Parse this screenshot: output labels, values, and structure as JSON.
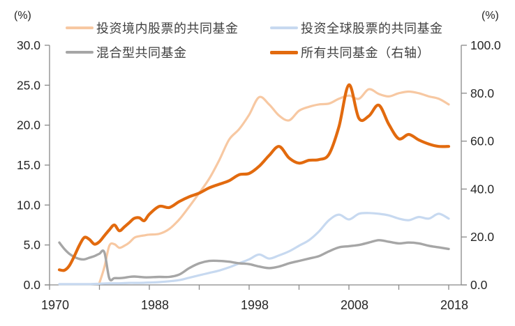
{
  "chart_data": {
    "type": "line",
    "title": "",
    "grid": false,
    "background_color": "#ffffff",
    "legend_position": "top",
    "axis_line_color": "#898989",
    "tick_label_color": "#262626",
    "legend_text_color": "#404040",
    "left_axis": {
      "unit": "(%)",
      "range": [
        0,
        30
      ],
      "tick_values": [
        0,
        5,
        10,
        15,
        20,
        25,
        30
      ],
      "tick_labels": [
        "0.0",
        "5.0",
        "10.0",
        "15.0",
        "20.0",
        "25.0",
        "30.0"
      ]
    },
    "right_axis": {
      "unit": "(%)",
      "range": [
        0,
        100
      ],
      "tick_values": [
        0,
        20,
        40,
        60,
        80,
        100
      ],
      "tick_labels": [
        "0.0",
        "20.0",
        "40.0",
        "60.0",
        "80.0",
        "100.0"
      ]
    },
    "x_axis": {
      "tick_count": 9,
      "tick_labels": [
        "1970",
        "1988",
        "1998",
        "2008",
        "2018"
      ],
      "labeled_tick_indices": [
        0,
        2,
        4,
        6,
        8
      ],
      "start_year": 1970,
      "break_year": 1988,
      "end_year": 2018
    },
    "series": [
      {
        "id": "domestic-equity-funds",
        "name": "投资境内股票的共同基金",
        "axis": "left",
        "color": "#F7C8A2",
        "width": 3.2,
        "points": [
          [
            1978,
            0.2
          ],
          [
            1979,
            2.2
          ],
          [
            1980,
            4.9
          ],
          [
            1981,
            5.1
          ],
          [
            1982,
            4.65
          ],
          [
            1983,
            4.9
          ],
          [
            1984,
            5.3
          ],
          [
            1985,
            5.9
          ],
          [
            1986,
            6.1
          ],
          [
            1987,
            6.2
          ],
          [
            1988,
            6.3
          ],
          [
            1989,
            6.4
          ],
          [
            1990,
            7.0
          ],
          [
            1991,
            8.2
          ],
          [
            1992,
            9.8
          ],
          [
            1993,
            11.5
          ],
          [
            1994,
            13.3
          ],
          [
            1995,
            15.6
          ],
          [
            1996,
            18.2
          ],
          [
            1997,
            19.5
          ],
          [
            1998,
            21.3
          ],
          [
            1999,
            23.5
          ],
          [
            2000,
            22.6
          ],
          [
            2001,
            21.2
          ],
          [
            2002,
            20.6
          ],
          [
            2003,
            21.8
          ],
          [
            2004,
            22.3
          ],
          [
            2005,
            22.6
          ],
          [
            2006,
            22.7
          ],
          [
            2007,
            23.3
          ],
          [
            2008,
            23.7
          ],
          [
            2009,
            23.3
          ],
          [
            2010,
            24.5
          ],
          [
            2011,
            23.9
          ],
          [
            2012,
            23.6
          ],
          [
            2013,
            24.0
          ],
          [
            2014,
            24.2
          ],
          [
            2015,
            24.0
          ],
          [
            2016,
            23.6
          ],
          [
            2017,
            23.3
          ],
          [
            2018,
            22.6
          ]
        ]
      },
      {
        "id": "global-equity-funds",
        "name": "投资全球股票的共同基金",
        "axis": "left",
        "color": "#C7D9F0",
        "width": 3.2,
        "points": [
          [
            1970,
            0.1
          ],
          [
            1972,
            0.1
          ],
          [
            1974,
            0.1
          ],
          [
            1976,
            0.1
          ],
          [
            1978,
            0.15
          ],
          [
            1980,
            0.2
          ],
          [
            1982,
            0.2
          ],
          [
            1984,
            0.25
          ],
          [
            1986,
            0.25
          ],
          [
            1988,
            0.3
          ],
          [
            1989,
            0.35
          ],
          [
            1990,
            0.45
          ],
          [
            1991,
            0.6
          ],
          [
            1992,
            0.9
          ],
          [
            1993,
            1.2
          ],
          [
            1994,
            1.5
          ],
          [
            1995,
            1.8
          ],
          [
            1996,
            2.2
          ],
          [
            1997,
            2.7
          ],
          [
            1998,
            3.2
          ],
          [
            1999,
            3.8
          ],
          [
            2000,
            3.3
          ],
          [
            2001,
            3.7
          ],
          [
            2002,
            4.2
          ],
          [
            2003,
            4.9
          ],
          [
            2004,
            5.6
          ],
          [
            2005,
            6.7
          ],
          [
            2006,
            8.1
          ],
          [
            2007,
            8.8
          ],
          [
            2008,
            8.2
          ],
          [
            2009,
            8.9
          ],
          [
            2010,
            9.0
          ],
          [
            2011,
            8.9
          ],
          [
            2012,
            8.7
          ],
          [
            2013,
            8.3
          ],
          [
            2014,
            8.1
          ],
          [
            2015,
            8.5
          ],
          [
            2016,
            8.3
          ],
          [
            2017,
            8.9
          ],
          [
            2018,
            8.3
          ]
        ]
      },
      {
        "id": "hybrid-funds",
        "name": "混合型共同基金",
        "axis": "left",
        "color": "#A6A6A6",
        "width": 3.4,
        "points": [
          [
            1970,
            5.3
          ],
          [
            1971,
            4.5
          ],
          [
            1972,
            3.9
          ],
          [
            1973,
            3.5
          ],
          [
            1974,
            3.25
          ],
          [
            1975,
            3.2
          ],
          [
            1976,
            3.4
          ],
          [
            1977,
            3.6
          ],
          [
            1978,
            3.9
          ],
          [
            1979,
            4.1
          ],
          [
            1980,
            0.8
          ],
          [
            1981,
            0.85
          ],
          [
            1982,
            0.85
          ],
          [
            1983,
            0.9
          ],
          [
            1984,
            1.0
          ],
          [
            1985,
            1.05
          ],
          [
            1986,
            1.0
          ],
          [
            1987,
            0.95
          ],
          [
            1988,
            0.95
          ],
          [
            1989,
            1.0
          ],
          [
            1990,
            1.0
          ],
          [
            1991,
            1.3
          ],
          [
            1992,
            2.1
          ],
          [
            1993,
            2.7
          ],
          [
            1994,
            3.0
          ],
          [
            1995,
            3.0
          ],
          [
            1996,
            2.9
          ],
          [
            1997,
            2.7
          ],
          [
            1998,
            2.6
          ],
          [
            1999,
            2.3
          ],
          [
            2000,
            2.1
          ],
          [
            2001,
            2.3
          ],
          [
            2002,
            2.7
          ],
          [
            2003,
            3.0
          ],
          [
            2004,
            3.3
          ],
          [
            2005,
            3.6
          ],
          [
            2006,
            4.2
          ],
          [
            2007,
            4.7
          ],
          [
            2008,
            4.85
          ],
          [
            2009,
            5.0
          ],
          [
            2010,
            5.3
          ],
          [
            2011,
            5.6
          ],
          [
            2012,
            5.4
          ],
          [
            2013,
            5.2
          ],
          [
            2014,
            5.3
          ],
          [
            2015,
            5.2
          ],
          [
            2016,
            4.9
          ],
          [
            2017,
            4.7
          ],
          [
            2018,
            4.5
          ]
        ]
      },
      {
        "id": "all-mutual-funds-right-axis",
        "name": "所有共同基金（右轴）",
        "axis": "right",
        "color": "#E26A0E",
        "width": 4.2,
        "points": [
          [
            1970,
            6.3
          ],
          [
            1971,
            6.1
          ],
          [
            1972,
            8.0
          ],
          [
            1973,
            12.0
          ],
          [
            1974,
            16.5
          ],
          [
            1975,
            19.8
          ],
          [
            1976,
            19.0
          ],
          [
            1977,
            17.0
          ],
          [
            1978,
            18.0
          ],
          [
            1979,
            20.5
          ],
          [
            1980,
            23.0
          ],
          [
            1981,
            25.0
          ],
          [
            1982,
            22.6
          ],
          [
            1983,
            24.2
          ],
          [
            1984,
            26.0
          ],
          [
            1985,
            27.8
          ],
          [
            1986,
            28.0
          ],
          [
            1987,
            26.8
          ],
          [
            1988,
            29.5
          ],
          [
            1989,
            32.8
          ],
          [
            1990,
            32.3
          ],
          [
            1991,
            34.8
          ],
          [
            1992,
            36.8
          ],
          [
            1993,
            38.3
          ],
          [
            1994,
            40.5
          ],
          [
            1995,
            42.0
          ],
          [
            1996,
            43.5
          ],
          [
            1997,
            46.0
          ],
          [
            1998,
            46.5
          ],
          [
            1999,
            49.5
          ],
          [
            2000,
            54.0
          ],
          [
            2001,
            57.8
          ],
          [
            2002,
            53.0
          ],
          [
            2003,
            50.8
          ],
          [
            2004,
            52.0
          ],
          [
            2005,
            52.3
          ],
          [
            2006,
            54.5
          ],
          [
            2007,
            66.0
          ],
          [
            2008,
            83.5
          ],
          [
            2009,
            69.5
          ],
          [
            2010,
            70.5
          ],
          [
            2011,
            75.0
          ],
          [
            2012,
            67.0
          ],
          [
            2013,
            61.0
          ],
          [
            2014,
            62.8
          ],
          [
            2015,
            60.5
          ],
          [
            2016,
            58.8
          ],
          [
            2017,
            57.8
          ],
          [
            2018,
            57.8
          ]
        ]
      }
    ]
  }
}
